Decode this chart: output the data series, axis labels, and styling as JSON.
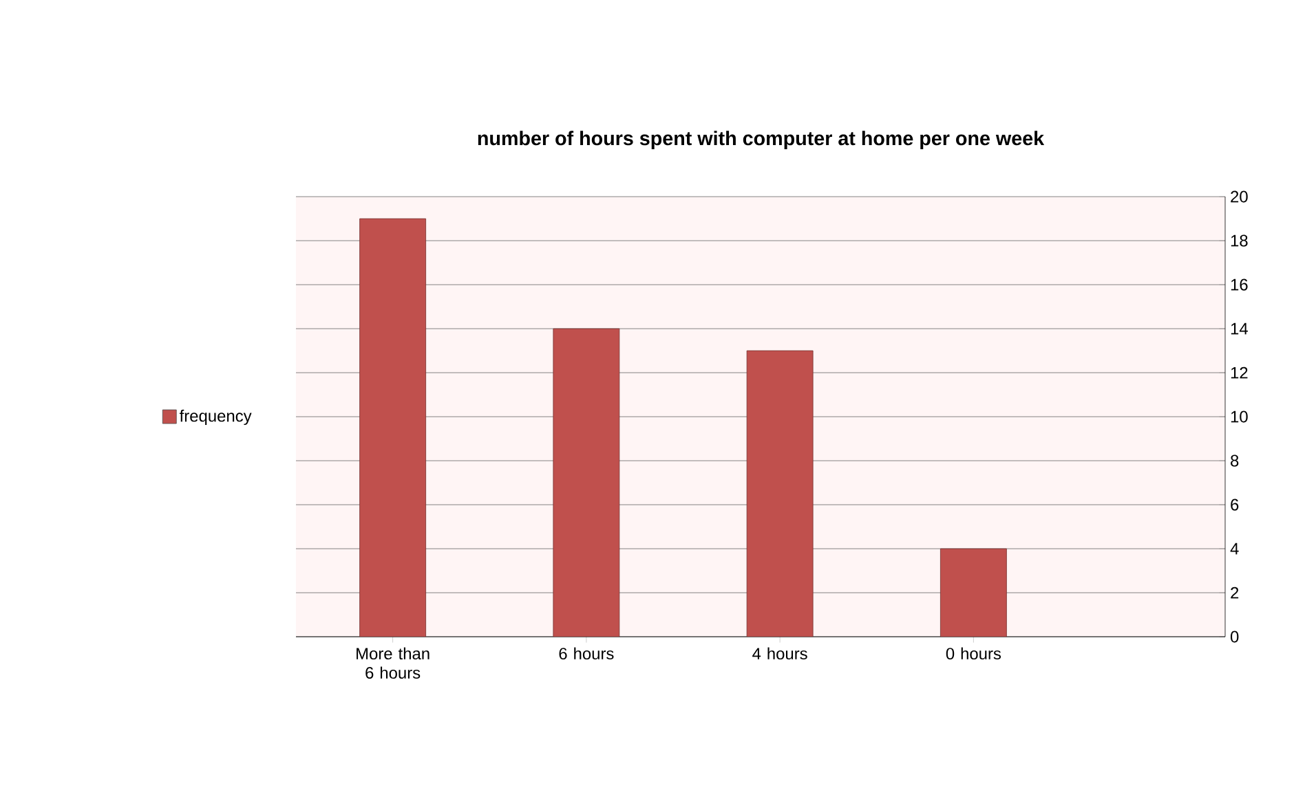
{
  "chart_data": {
    "type": "bar",
    "title": "number of hours spent with computer at home per one week",
    "categories": [
      "More than 6 hours",
      "6 hours",
      "4 hours",
      "0 hours"
    ],
    "series": [
      {
        "name": "frequency",
        "color": "#c0504d",
        "values": [
          19,
          14,
          13,
          4
        ]
      }
    ],
    "ylim": [
      0,
      20
    ],
    "yticks": [
      0,
      2,
      4,
      6,
      8,
      10,
      12,
      14,
      16,
      18,
      20
    ],
    "grid": "y",
    "legend": "left"
  }
}
